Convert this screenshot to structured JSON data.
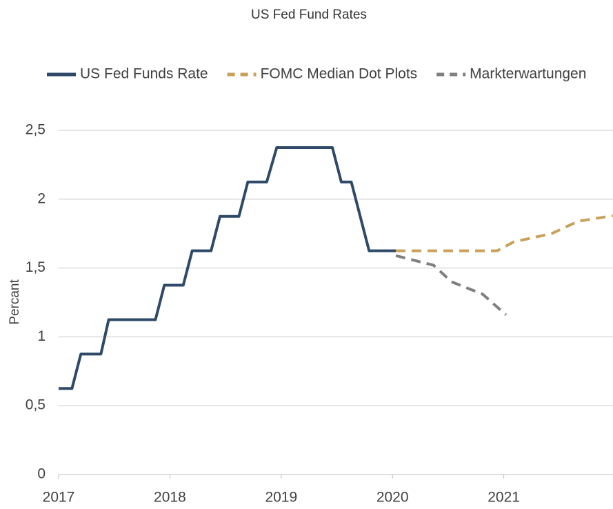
{
  "chart_data": {
    "type": "line",
    "title": "US Fed Fund Rates",
    "y_label": "Percant",
    "xlim": [
      2017,
      2022
    ],
    "xticks": [
      2017,
      2018,
      2019,
      2020,
      2021
    ],
    "ylim": [
      0,
      2.5
    ],
    "yticks": [
      0,
      {
        "value": 0.5,
        "label": "0,5"
      },
      1,
      {
        "value": 1.5,
        "label": "1,5"
      },
      2,
      {
        "value": 2.5,
        "label": "2,5"
      }
    ],
    "grid": true,
    "legend": "top",
    "series": [
      {
        "name": "US Fed Funds Rate",
        "color": "#2e4a68",
        "dash": false,
        "x": [
          2017.0,
          2017.12,
          2017.2,
          2017.38,
          2017.45,
          2017.87,
          2017.95,
          2018.12,
          2018.2,
          2018.37,
          2018.45,
          2018.62,
          2018.7,
          2018.87,
          2018.96,
          2019.46,
          2019.54,
          2019.63,
          2019.79,
          2020.03
        ],
        "values": [
          0.625,
          0.625,
          0.875,
          0.875,
          1.125,
          1.125,
          1.375,
          1.375,
          1.625,
          1.625,
          1.875,
          1.875,
          2.125,
          2.125,
          2.375,
          2.375,
          2.125,
          2.125,
          1.625,
          1.625
        ]
      },
      {
        "name": "FOMC Median Dot Plots",
        "color": "#c9a15a",
        "dash": true,
        "x": [
          2020.03,
          2020.94,
          2021.09,
          2021.43,
          2021.67,
          2021.98
        ],
        "values": [
          1.625,
          1.625,
          1.69,
          1.75,
          1.84,
          1.88
        ]
      },
      {
        "name": "Markterwartungen",
        "color": "#7f7f7f",
        "dash": true,
        "x": [
          2020.03,
          2020.37,
          2020.53,
          2020.81,
          2021.02
        ],
        "values": [
          1.59,
          1.52,
          1.4,
          1.31,
          1.16
        ]
      }
    ]
  }
}
